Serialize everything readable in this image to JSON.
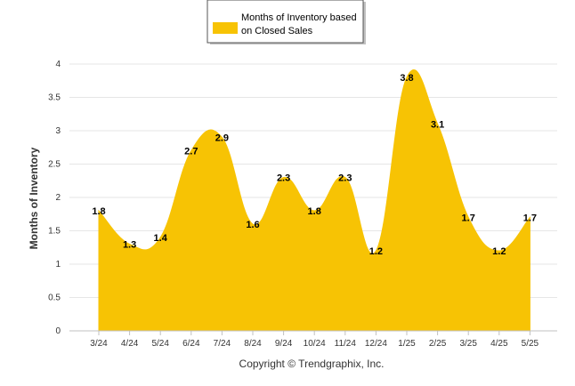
{
  "colors": {
    "series": "#f7c304",
    "grid": "#e6e6e6",
    "axis": "#c0c0c0",
    "text": "#333333"
  },
  "legend": {
    "label_line1": "Months of Inventory based",
    "label_line2": "on Closed Sales"
  },
  "footer": {
    "copyright": "Copyright © Trendgraphix, Inc."
  },
  "chart_data": {
    "type": "area",
    "categories": [
      "3/24",
      "4/24",
      "5/24",
      "6/24",
      "7/24",
      "8/24",
      "9/24",
      "10/24",
      "11/24",
      "12/24",
      "1/25",
      "2/25",
      "3/25",
      "4/25",
      "5/25"
    ],
    "series": [
      {
        "name": "Months of Inventory based on Closed Sales",
        "values": [
          1.8,
          1.3,
          1.4,
          2.7,
          2.9,
          1.6,
          2.3,
          1.8,
          2.3,
          1.2,
          3.8,
          3.1,
          1.7,
          1.2,
          1.7
        ]
      }
    ],
    "ylabel": "Months of Inventory",
    "xlabel": "",
    "ylim": [
      0,
      4
    ],
    "yticks": [
      "0",
      "0.5",
      "1",
      "1.5",
      "2",
      "2.5",
      "3",
      "3.5",
      "4"
    ],
    "grid": true,
    "legend_position": "top-center"
  }
}
